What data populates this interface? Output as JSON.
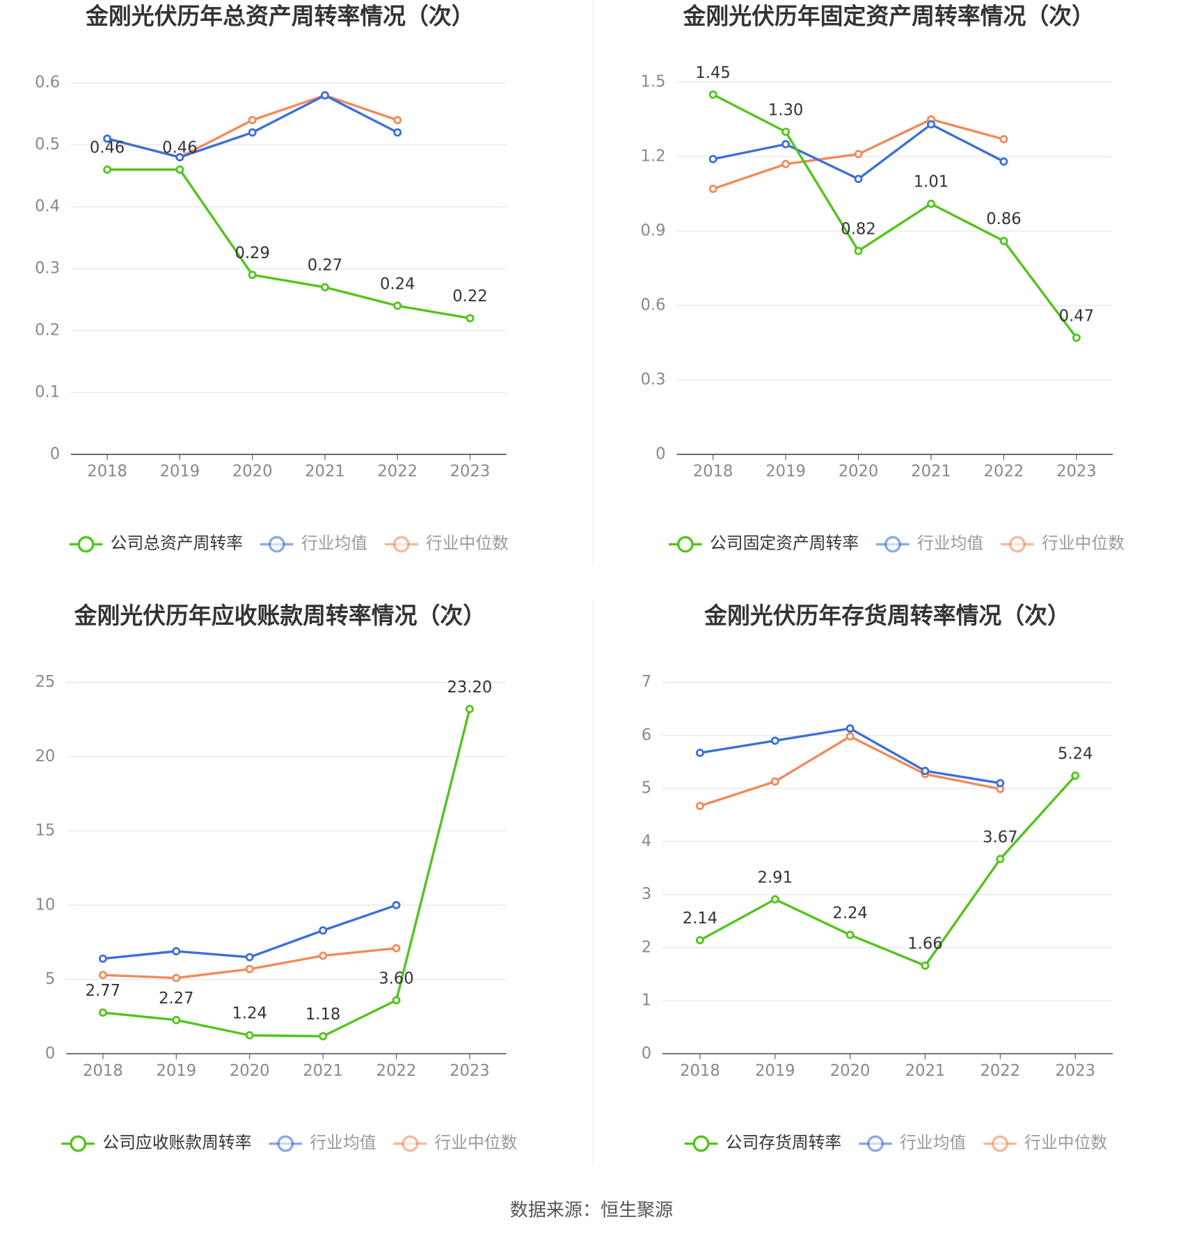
{
  "chart_data": [
    {
      "type": "line",
      "title": "金刚光伏历年总资产周转率情况（次）",
      "categories": [
        "2018",
        "2019",
        "2020",
        "2021",
        "2022",
        "2023"
      ],
      "ylim": [
        0,
        0.6
      ],
      "yticks": [
        0,
        0.1,
        0.2,
        0.3,
        0.4,
        0.5,
        0.6
      ],
      "grid": true,
      "legend": "bottom",
      "series": [
        {
          "name": "公司总资产周转率",
          "color": "#52c41a",
          "values": [
            0.46,
            0.46,
            0.29,
            0.27,
            0.24,
            0.22
          ],
          "value_labels": [
            "0.46",
            "0.46",
            "0.29",
            "0.27",
            "0.24",
            "0.22"
          ]
        },
        {
          "name": "行业均值",
          "color": "#3b6fd9",
          "values": [
            0.51,
            0.48,
            0.52,
            0.58,
            0.52,
            null
          ]
        },
        {
          "name": "行业中位数",
          "color": "#f08a5a",
          "values": [
            0.51,
            0.48,
            0.54,
            0.58,
            0.54,
            null
          ]
        }
      ]
    },
    {
      "type": "line",
      "title": "金刚光伏历年固定资产周转率情况（次）",
      "categories": [
        "2018",
        "2019",
        "2020",
        "2021",
        "2022",
        "2023"
      ],
      "ylim": [
        0,
        1.5
      ],
      "yticks": [
        0,
        0.3,
        0.6,
        0.9,
        1.2,
        1.5
      ],
      "grid": true,
      "legend": "bottom",
      "series": [
        {
          "name": "公司固定资产周转率",
          "color": "#52c41a",
          "values": [
            1.45,
            1.3,
            0.82,
            1.01,
            0.86,
            0.47
          ],
          "value_labels": [
            "1.45",
            "1.30",
            "0.82",
            "1.01",
            "0.86",
            "0.47"
          ]
        },
        {
          "name": "行业均值",
          "color": "#3b6fd9",
          "values": [
            1.19,
            1.25,
            1.11,
            1.33,
            1.18,
            null
          ]
        },
        {
          "name": "行业中位数",
          "color": "#f08a5a",
          "values": [
            1.07,
            1.17,
            1.21,
            1.35,
            1.27,
            null
          ]
        }
      ]
    },
    {
      "type": "line",
      "title": "金刚光伏历年应收账款周转率情况（次）",
      "categories": [
        "2018",
        "2019",
        "2020",
        "2021",
        "2022",
        "2023"
      ],
      "ylim": [
        0,
        25
      ],
      "yticks": [
        0,
        5,
        10,
        15,
        20,
        25
      ],
      "grid": true,
      "legend": "bottom",
      "series": [
        {
          "name": "公司应收账款周转率",
          "color": "#52c41a",
          "values": [
            2.77,
            2.27,
            1.24,
            1.18,
            3.6,
            23.2
          ],
          "value_labels": [
            "2.77",
            "2.27",
            "1.24",
            "1.18",
            "3.60",
            "23.20"
          ]
        },
        {
          "name": "行业均值",
          "color": "#3b6fd9",
          "values": [
            6.4,
            6.9,
            6.5,
            8.3,
            10.0,
            null
          ]
        },
        {
          "name": "行业中位数",
          "color": "#f08a5a",
          "values": [
            5.3,
            5.1,
            5.7,
            6.6,
            7.1,
            null
          ]
        }
      ]
    },
    {
      "type": "line",
      "title": "金刚光伏历年存货周转率情况（次）",
      "categories": [
        "2018",
        "2019",
        "2020",
        "2021",
        "2022",
        "2023"
      ],
      "ylim": [
        0,
        7
      ],
      "yticks": [
        0,
        1,
        2,
        3,
        4,
        5,
        6,
        7
      ],
      "grid": true,
      "legend": "bottom",
      "series": [
        {
          "name": "公司存货周转率",
          "color": "#52c41a",
          "values": [
            2.14,
            2.91,
            2.24,
            1.66,
            3.67,
            5.24
          ],
          "value_labels": [
            "2.14",
            "2.91",
            "2.24",
            "1.66",
            "3.67",
            "5.24"
          ]
        },
        {
          "name": "行业均值",
          "color": "#3b6fd9",
          "values": [
            5.67,
            5.9,
            6.13,
            5.33,
            5.1,
            null
          ]
        },
        {
          "name": "行业中位数",
          "color": "#f08a5a",
          "values": [
            4.67,
            5.13,
            5.98,
            5.27,
            4.99,
            null
          ]
        }
      ]
    }
  ],
  "source": "数据来源：恒生聚源"
}
